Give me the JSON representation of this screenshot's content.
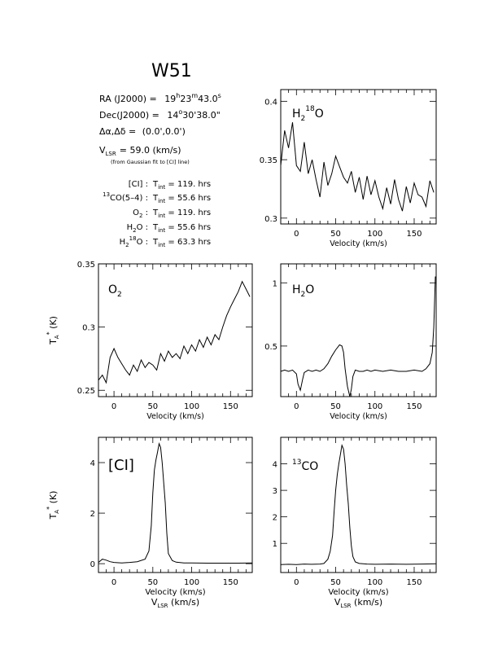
{
  "title": "W51",
  "info": {
    "ra_label": "RA (J2000)  =",
    "ra_h": "19",
    "ra_m": "23",
    "ra_s": "43.0",
    "dec_label": "Dec(J2000)  =",
    "dec_d": "14",
    "dec_rest": "30'38.0\"",
    "offset_label": "Δα,Δδ  =",
    "offset_value": "(0.0',0.0')",
    "vlsr_label": "V",
    "vlsr_sub": "LSR",
    "vlsr_value": "= 59.0 (km/s)",
    "vlsr_note": "(from Gaussian fit to [CI] line)",
    "tint_rows": [
      {
        "sup": "",
        "name": "[CI]",
        "sub": "",
        "tail": "",
        "value": "= 119. hrs"
      },
      {
        "sup": "13",
        "name": "CO(5–4)",
        "sub": "",
        "tail": "",
        "value": "= 55.6 hrs"
      },
      {
        "sup": "",
        "name": "O",
        "sub": "2",
        "tail": "",
        "value": "= 119. hrs"
      },
      {
        "sup": "",
        "name": "H",
        "sub": "2",
        "tail": "O",
        "value": "= 55.6 hrs"
      },
      {
        "sup": "",
        "name": "H",
        "sub": "2",
        "tail": "O",
        "sup18": "18",
        "value": "= 63.3 hrs"
      }
    ],
    "tint_label": "T",
    "tint_sub": "int"
  },
  "axis_text": {
    "velocity_label": "Velocity (km/s)",
    "vlsr_main": "V",
    "vlsr_sub": "LSR",
    "vlsr_units": "(km/s)",
    "ta_main": "T",
    "ta_sub": "A",
    "ta_sup": "*",
    "ta_units": "(K)"
  },
  "chart_data": [
    {
      "type": "line",
      "id": "h218o",
      "label_parts": {
        "main": "H",
        "sub": "2",
        "sup": "18",
        "tail": "O"
      },
      "xlim": [
        -20,
        178
      ],
      "ylim": [
        0.295,
        0.41
      ],
      "xticks": [
        0,
        50,
        100,
        150
      ],
      "yticks": [
        0.3,
        0.35,
        0.4
      ],
      "ytick_labels": [
        "0.3",
        "0.35",
        "0.4"
      ],
      "xlabel": "Velocity (km/s)",
      "x": [
        -20,
        -15,
        -10,
        -5,
        0,
        5,
        10,
        15,
        20,
        25,
        30,
        35,
        40,
        45,
        50,
        55,
        60,
        65,
        70,
        75,
        80,
        85,
        90,
        95,
        100,
        105,
        110,
        115,
        120,
        125,
        130,
        135,
        140,
        145,
        150,
        155,
        160,
        165,
        170,
        175
      ],
      "y": [
        0.345,
        0.375,
        0.36,
        0.382,
        0.345,
        0.34,
        0.365,
        0.338,
        0.35,
        0.333,
        0.318,
        0.348,
        0.328,
        0.338,
        0.353,
        0.344,
        0.335,
        0.33,
        0.34,
        0.322,
        0.335,
        0.316,
        0.336,
        0.32,
        0.332,
        0.318,
        0.308,
        0.326,
        0.312,
        0.333,
        0.316,
        0.306,
        0.327,
        0.313,
        0.33,
        0.32,
        0.318,
        0.31,
        0.332,
        0.322
      ]
    },
    {
      "type": "line",
      "id": "o2",
      "label_parts": {
        "main": "O",
        "sub": "2",
        "sup": "",
        "tail": ""
      },
      "xlim": [
        -20,
        178
      ],
      "ylim": [
        0.245,
        0.35
      ],
      "xticks": [
        0,
        50,
        100,
        150
      ],
      "yticks": [
        0.25,
        0.3,
        0.35
      ],
      "ytick_labels": [
        "0.25",
        "0.3",
        "0.35"
      ],
      "xlabel": "Velocity (km/s)",
      "x": [
        -20,
        -15,
        -10,
        -5,
        0,
        5,
        10,
        15,
        20,
        25,
        30,
        35,
        40,
        45,
        50,
        55,
        60,
        65,
        70,
        75,
        80,
        85,
        90,
        95,
        100,
        105,
        110,
        115,
        120,
        125,
        130,
        135,
        140,
        145,
        150,
        155,
        160,
        165,
        170,
        175
      ],
      "y": [
        0.258,
        0.262,
        0.256,
        0.276,
        0.283,
        0.276,
        0.271,
        0.266,
        0.262,
        0.27,
        0.265,
        0.274,
        0.268,
        0.272,
        0.27,
        0.266,
        0.279,
        0.273,
        0.281,
        0.276,
        0.279,
        0.275,
        0.285,
        0.279,
        0.286,
        0.281,
        0.29,
        0.284,
        0.292,
        0.286,
        0.294,
        0.29,
        0.3,
        0.309,
        0.316,
        0.322,
        0.328,
        0.336,
        0.33,
        0.324
      ]
    },
    {
      "type": "line",
      "id": "h2o",
      "label_parts": {
        "main": "H",
        "sub": "2",
        "sup": "",
        "tail": "O"
      },
      "xlim": [
        -20,
        178
      ],
      "ylim": [
        0.1,
        1.15
      ],
      "xticks": [
        0,
        50,
        100,
        150
      ],
      "yticks": [
        0.5,
        1
      ],
      "ytick_labels": [
        "0.5",
        "1"
      ],
      "xlabel": "Velocity (km/s)",
      "x": [
        -20,
        -15,
        -10,
        -5,
        0,
        2,
        5,
        8,
        10,
        15,
        20,
        25,
        30,
        35,
        40,
        45,
        50,
        55,
        58,
        60,
        62,
        65,
        68,
        70,
        72,
        75,
        80,
        85,
        90,
        95,
        100,
        110,
        120,
        130,
        140,
        150,
        160,
        165,
        170,
        173,
        175,
        177
      ],
      "y": [
        0.3,
        0.31,
        0.3,
        0.31,
        0.28,
        0.2,
        0.15,
        0.24,
        0.29,
        0.31,
        0.3,
        0.31,
        0.3,
        0.32,
        0.36,
        0.42,
        0.47,
        0.51,
        0.5,
        0.45,
        0.32,
        0.18,
        0.1,
        0.16,
        0.26,
        0.31,
        0.3,
        0.3,
        0.31,
        0.3,
        0.31,
        0.3,
        0.31,
        0.3,
        0.3,
        0.31,
        0.3,
        0.32,
        0.36,
        0.45,
        0.65,
        1.05
      ]
    },
    {
      "type": "line",
      "id": "ci",
      "label_parts": {
        "main": "[CI]",
        "sub": "",
        "sup": "",
        "tail": ""
      },
      "xlim": [
        -20,
        178
      ],
      "ylim": [
        -0.35,
        5.0
      ],
      "xticks": [
        0,
        50,
        100,
        150
      ],
      "yticks": [
        0,
        2,
        4
      ],
      "ytick_labels": [
        "0",
        "2",
        "4"
      ],
      "xlabel": "Velocity (km/s)",
      "x": [
        -20,
        -15,
        -10,
        -5,
        0,
        10,
        20,
        30,
        40,
        45,
        48,
        50,
        52,
        54,
        56,
        58,
        60,
        62,
        64,
        66,
        68,
        70,
        75,
        80,
        90,
        100,
        120,
        140,
        160,
        178
      ],
      "y": [
        0.05,
        0.18,
        0.14,
        0.08,
        0.05,
        0.03,
        0.05,
        0.08,
        0.18,
        0.5,
        1.5,
        2.8,
        3.7,
        4.1,
        4.4,
        4.75,
        4.6,
        4.0,
        3.2,
        2.4,
        1.2,
        0.4,
        0.12,
        0.06,
        0.03,
        0.03,
        0.02,
        0.02,
        0.02,
        0.03
      ]
    },
    {
      "type": "line",
      "id": "13co",
      "label_parts": {
        "main": "CO",
        "sub": "",
        "sup": "13",
        "tail": "",
        "sup_first": true
      },
      "xlim": [
        -20,
        178
      ],
      "ylim": [
        -0.1,
        5.0
      ],
      "xticks": [
        0,
        50,
        100,
        150
      ],
      "yticks": [
        1,
        2,
        3,
        4
      ],
      "ytick_labels": [
        "1",
        "2",
        "3",
        "4"
      ],
      "xlabel": "Velocity (km/s)",
      "x": [
        -20,
        -10,
        0,
        10,
        20,
        30,
        35,
        40,
        43,
        46,
        48,
        50,
        52,
        54,
        56,
        58,
        60,
        62,
        64,
        66,
        68,
        70,
        72,
        75,
        80,
        90,
        100,
        120,
        140,
        160,
        178
      ],
      "y": [
        0.2,
        0.21,
        0.2,
        0.22,
        0.21,
        0.22,
        0.24,
        0.4,
        0.7,
        1.3,
        2.2,
        3.0,
        3.6,
        4.0,
        4.35,
        4.7,
        4.55,
        4.0,
        3.2,
        2.5,
        1.6,
        0.9,
        0.5,
        0.3,
        0.24,
        0.22,
        0.21,
        0.22,
        0.21,
        0.22,
        0.23
      ]
    }
  ]
}
